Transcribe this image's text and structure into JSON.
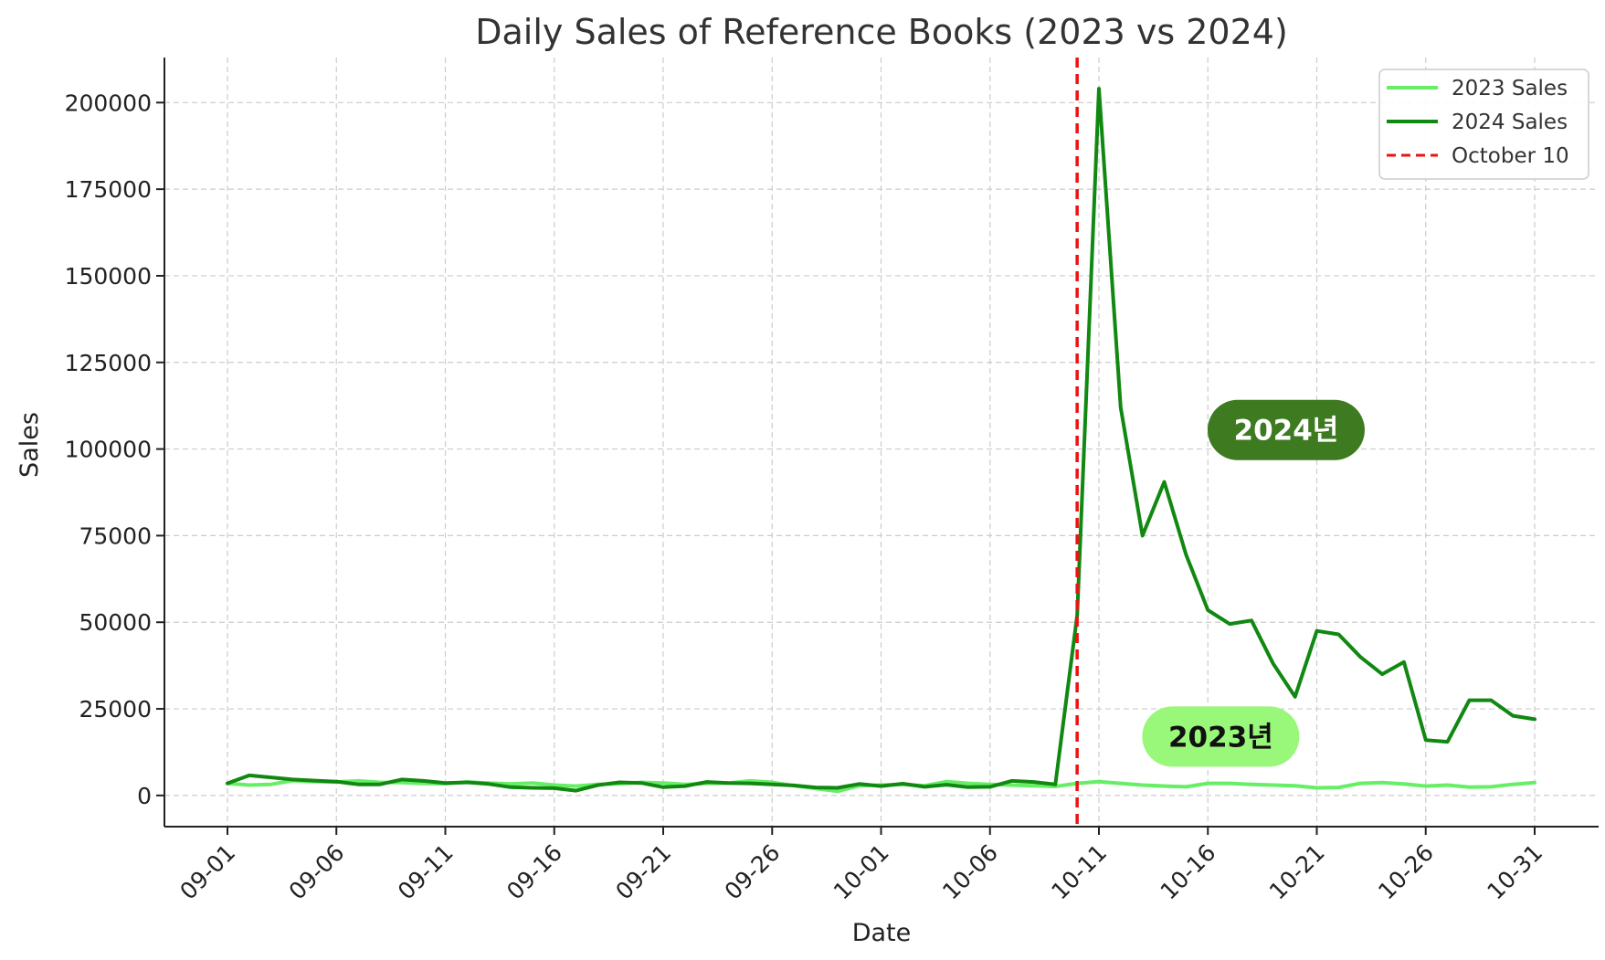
{
  "chart_data": {
    "type": "line",
    "title": "Daily Sales of Reference Books (2023 vs 2024)",
    "xlabel": "Date",
    "ylabel": "Sales",
    "ylim": [
      -9000,
      213000
    ],
    "yticks": [
      0,
      25000,
      50000,
      75000,
      100000,
      125000,
      150000,
      175000,
      200000
    ],
    "ytick_labels": [
      "0",
      "25000",
      "50000",
      "75000",
      "100000",
      "125000",
      "150000",
      "175000",
      "200000"
    ],
    "x": [
      "09-01",
      "09-02",
      "09-03",
      "09-04",
      "09-05",
      "09-06",
      "09-07",
      "09-08",
      "09-09",
      "09-10",
      "09-11",
      "09-12",
      "09-13",
      "09-14",
      "09-15",
      "09-16",
      "09-17",
      "09-18",
      "09-19",
      "09-20",
      "09-21",
      "09-22",
      "09-23",
      "09-24",
      "09-25",
      "09-26",
      "09-27",
      "09-28",
      "09-29",
      "09-30",
      "10-01",
      "10-02",
      "10-03",
      "10-04",
      "10-05",
      "10-06",
      "10-07",
      "10-08",
      "10-09",
      "10-10",
      "10-11",
      "10-12",
      "10-13",
      "10-14",
      "10-15",
      "10-16",
      "10-17",
      "10-18",
      "10-19",
      "10-20",
      "10-21",
      "10-22",
      "10-23",
      "10-24",
      "10-25",
      "10-26",
      "10-27",
      "10-28",
      "10-29",
      "10-30",
      "10-31"
    ],
    "xtick_labels": [
      "09-01",
      "09-06",
      "09-11",
      "09-16",
      "09-21",
      "09-26",
      "10-01",
      "10-06",
      "10-11",
      "10-16",
      "10-21",
      "10-26",
      "10-31"
    ],
    "grid": true,
    "legend_position": "top-right",
    "series": [
      {
        "name": "2023 Sales",
        "color": "#66ee66",
        "values": [
          3500,
          3000,
          3200,
          4300,
          4000,
          3900,
          4200,
          3800,
          3700,
          3500,
          3400,
          3900,
          3600,
          3300,
          3600,
          3000,
          2700,
          3200,
          3400,
          3800,
          3600,
          3200,
          3500,
          3600,
          4200,
          3800,
          2800,
          2000,
          1200,
          2800,
          3000,
          3200,
          2800,
          4000,
          3500,
          3200,
          3000,
          2800,
          2600,
          3500,
          4000,
          3500,
          3000,
          2700,
          2500,
          3500,
          3500,
          3200,
          3000,
          2800,
          2200,
          2300,
          3500,
          3700,
          3300,
          2700,
          3000,
          2400,
          2500,
          3200,
          3700
        ]
      },
      {
        "name": "2024 Sales",
        "color": "#118811",
        "values": [
          3500,
          5800,
          5200,
          4600,
          4300,
          4000,
          3200,
          3200,
          4600,
          4200,
          3600,
          3800,
          3300,
          2400,
          2200,
          2100,
          1400,
          3000,
          3800,
          3600,
          2400,
          2700,
          3900,
          3600,
          3500,
          3200,
          2900,
          2300,
          2200,
          3300,
          2700,
          3400,
          2500,
          3100,
          2400,
          2500,
          4200,
          3900,
          3200,
          52000,
          204000,
          112000,
          75000,
          90500,
          69500,
          53500,
          49500,
          50500,
          38000,
          28500,
          47500,
          46500,
          40000,
          35000,
          38500,
          16000,
          15500,
          27500,
          27500,
          23000,
          22000
        ]
      }
    ],
    "reference_lines": [
      {
        "name": "October 10",
        "x": "10-10",
        "color": "#ee1111",
        "style": "dashed"
      }
    ],
    "annotations": [
      {
        "text": "2024년",
        "x": "10-18",
        "y": 105500,
        "bg": "#3d7a20",
        "fg": "#ffffff"
      },
      {
        "text": "2023년",
        "x": "10-15",
        "y": 17000,
        "bg": "#99f77a",
        "fg": "#111111"
      }
    ]
  }
}
